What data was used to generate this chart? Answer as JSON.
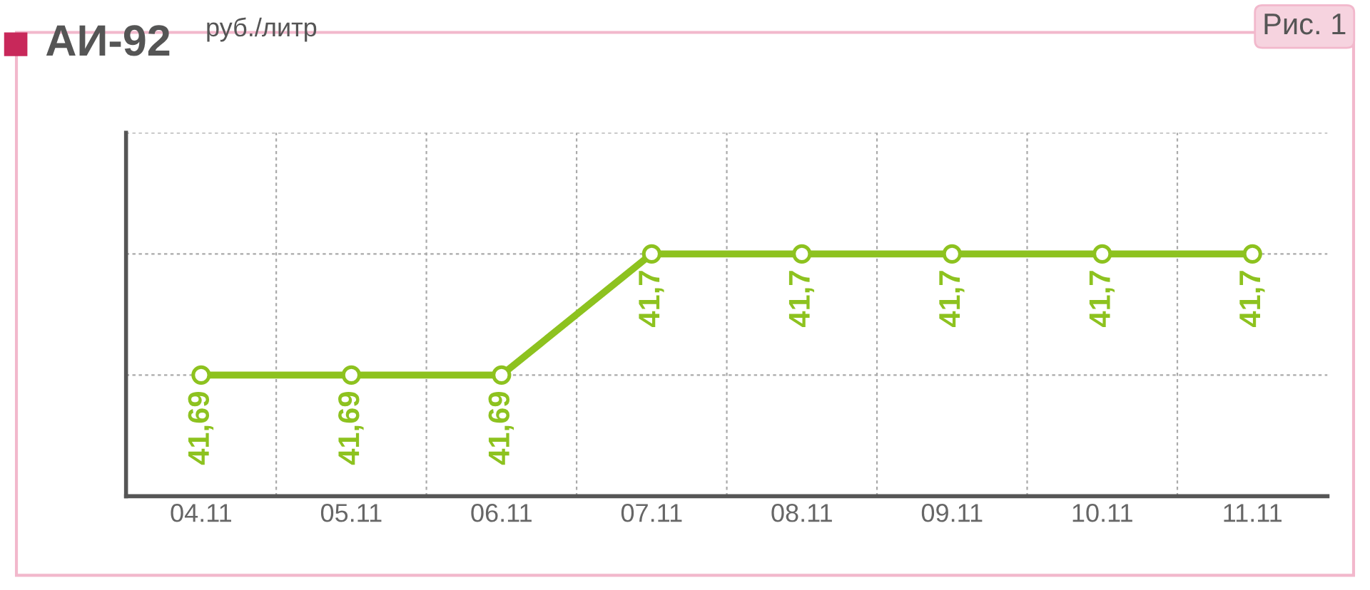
{
  "chart_data": {
    "type": "line",
    "title": "АИ-92",
    "subtitle": "руб./литр",
    "annotations": [
      "Рис. 1"
    ],
    "categories": [
      "04.11",
      "05.11",
      "06.11",
      "07.11",
      "08.11",
      "09.11",
      "10.11",
      "11.11"
    ],
    "series": [
      {
        "color": "#8dc21f",
        "values": [
          41.69,
          41.69,
          41.69,
          41.7,
          41.7,
          41.7,
          41.7,
          41.7
        ],
        "value_labels": [
          "41,69",
          "41,69",
          "41,69",
          "41,7",
          "41,7",
          "41,7",
          "41,7",
          "41,7"
        ]
      }
    ],
    "ylim": [
      41.68,
      41.71
    ],
    "yticks": [
      {
        "value": 41.68,
        "label": null
      },
      {
        "value": 41.69,
        "label": null
      },
      {
        "value": 41.7,
        "label": null
      },
      {
        "value": 41.71,
        "label": null
      }
    ],
    "tick_labels": "x",
    "grid": true,
    "marker": "circle",
    "line_style": "solid"
  }
}
